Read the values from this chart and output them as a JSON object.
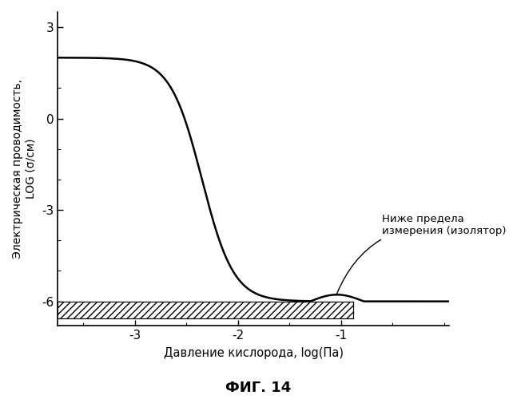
{
  "title": "ФИГ. 14",
  "xlabel": "Давление кислорода, log(Па)",
  "ylabel": "Электрическая проводимость,\nLOG (σ/см)",
  "xlim": [
    -3.75,
    0.05
  ],
  "ylim": [
    -6.8,
    3.5
  ],
  "xticks": [
    -3,
    -2,
    -1
  ],
  "yticks": [
    -6,
    -3,
    0,
    3
  ],
  "hatch_ymin": -6.55,
  "hatch_ymax": -6.0,
  "hatch_xmin": -3.75,
  "hatch_xmax": -0.88,
  "annotation_text": "Ниже предела\nизмерения (изолятор)",
  "curve_color": "#000000",
  "hatch_color": "#000000",
  "background_color": "#ffffff",
  "sigmoid_upper": 2.0,
  "sigmoid_lower": -6.0,
  "sigmoid_k": 6.5,
  "sigmoid_x0": -2.35,
  "curl_x_start": -1.3,
  "curl_x_end": -0.78,
  "curl_amplitude": 0.22
}
